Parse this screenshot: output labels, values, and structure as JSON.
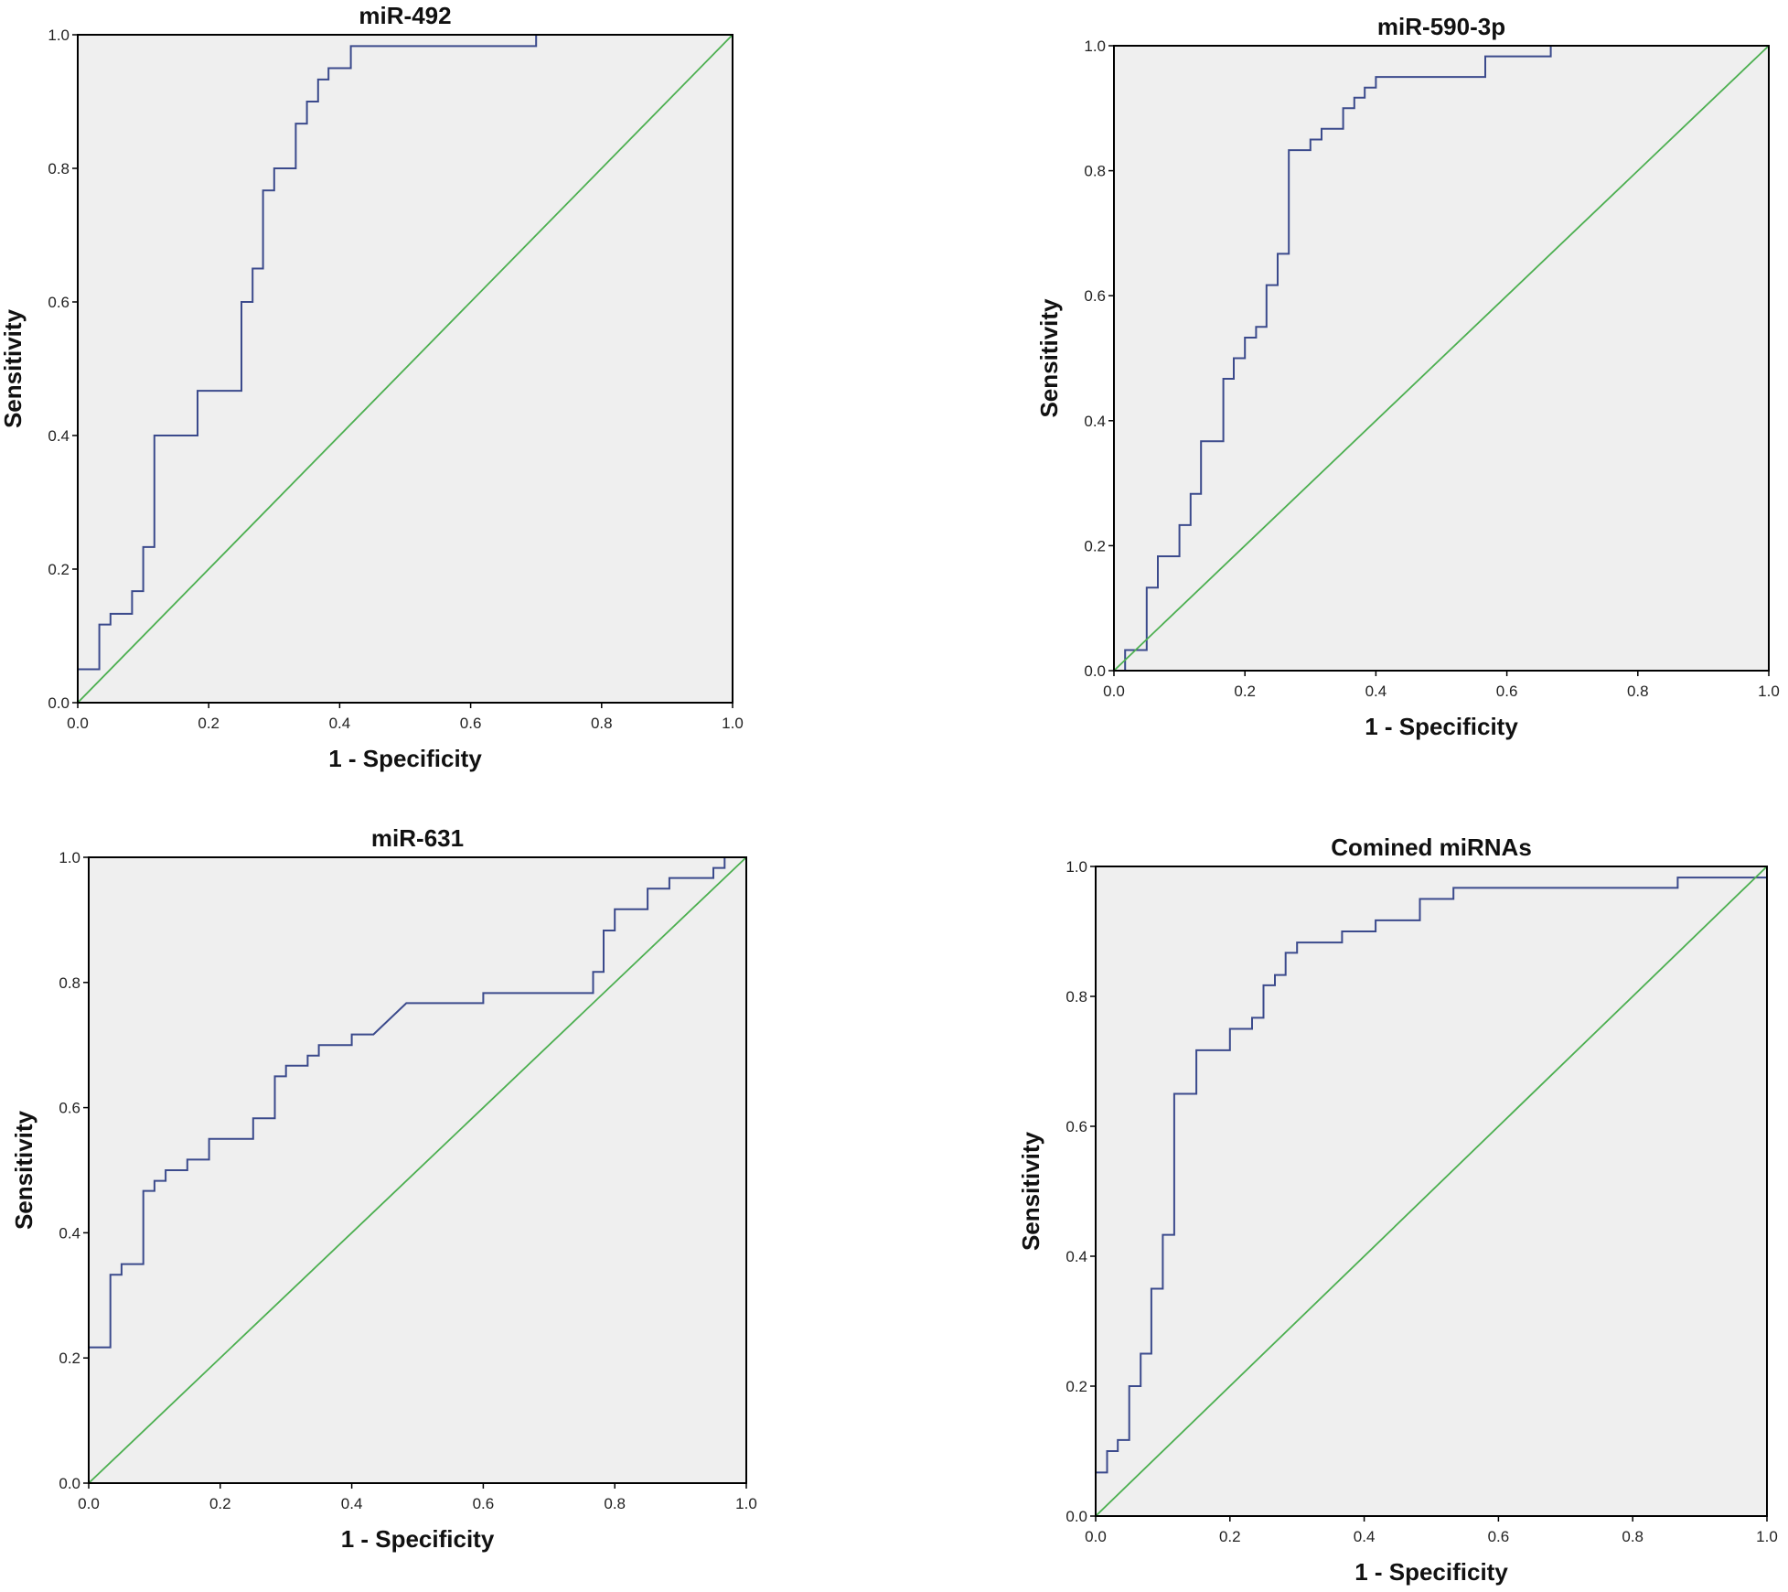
{
  "figure": {
    "colors": {
      "roc_curve": "#3b4a8c",
      "reference_line": "#4caf50",
      "plot_background": "#efefef",
      "frame": "#000000"
    }
  },
  "chart_data": [
    {
      "type": "line",
      "title": "miR-492",
      "xlabel": "1 - Specificity",
      "ylabel": "Sensitivity",
      "xlim": [
        0,
        1
      ],
      "ylim": [
        0,
        1
      ],
      "xticks": [
        "0.0",
        "0.2",
        "0.4",
        "0.6",
        "0.8",
        "1.0"
      ],
      "yticks": [
        "0.0",
        "0.2",
        "0.4",
        "0.6",
        "0.8",
        "1.0"
      ],
      "series": [
        {
          "name": "ROC curve",
          "role": "roc",
          "x": [
            0,
            0,
            0.033,
            0.033,
            0.05,
            0.05,
            0.083,
            0.083,
            0.1,
            0.1,
            0.117,
            0.117,
            0.183,
            0.183,
            0.25,
            0.25,
            0.267,
            0.267,
            0.283,
            0.283,
            0.3,
            0.3,
            0.333,
            0.333,
            0.35,
            0.35,
            0.367,
            0.367,
            0.383,
            0.383,
            0.417,
            0.417,
            0.7,
            0.7,
            1.0
          ],
          "y": [
            0,
            0.05,
            0.05,
            0.117,
            0.117,
            0.133,
            0.133,
            0.167,
            0.167,
            0.233,
            0.233,
            0.4,
            0.4,
            0.467,
            0.467,
            0.6,
            0.6,
            0.65,
            0.65,
            0.767,
            0.767,
            0.8,
            0.8,
            0.867,
            0.867,
            0.9,
            0.9,
            0.933,
            0.933,
            0.95,
            0.95,
            0.983,
            0.983,
            1.0,
            1.0
          ]
        },
        {
          "name": "Reference line",
          "role": "reference",
          "x": [
            0,
            1
          ],
          "y": [
            0,
            1
          ]
        }
      ]
    },
    {
      "type": "line",
      "title": "miR-590-3p",
      "xlabel": "1 - Specificity",
      "ylabel": "Sensitivity",
      "xlim": [
        0,
        1
      ],
      "ylim": [
        0,
        1
      ],
      "xticks": [
        "0.0",
        "0.2",
        "0.4",
        "0.6",
        "0.8",
        "1.0"
      ],
      "yticks": [
        "0.0",
        "0.2",
        "0.4",
        "0.6",
        "0.8",
        "1.0"
      ],
      "series": [
        {
          "name": "ROC curve",
          "role": "roc",
          "x": [
            0,
            0.017,
            0.017,
            0.05,
            0.05,
            0.067,
            0.067,
            0.1,
            0.1,
            0.117,
            0.117,
            0.133,
            0.133,
            0.167,
            0.167,
            0.183,
            0.183,
            0.2,
            0.2,
            0.217,
            0.217,
            0.233,
            0.233,
            0.25,
            0.25,
            0.267,
            0.267,
            0.3,
            0.3,
            0.317,
            0.317,
            0.35,
            0.35,
            0.367,
            0.367,
            0.383,
            0.383,
            0.4,
            0.4,
            0.567,
            0.567,
            0.667,
            0.667,
            1.0
          ],
          "y": [
            0,
            0,
            0.033,
            0.033,
            0.133,
            0.133,
            0.183,
            0.183,
            0.233,
            0.233,
            0.283,
            0.283,
            0.367,
            0.367,
            0.467,
            0.467,
            0.5,
            0.5,
            0.533,
            0.533,
            0.55,
            0.55,
            0.617,
            0.617,
            0.667,
            0.667,
            0.833,
            0.833,
            0.85,
            0.85,
            0.867,
            0.867,
            0.9,
            0.9,
            0.917,
            0.917,
            0.933,
            0.933,
            0.95,
            0.95,
            0.983,
            0.983,
            1.0,
            1.0
          ]
        },
        {
          "name": "Reference line",
          "role": "reference",
          "x": [
            0,
            1
          ],
          "y": [
            0,
            1
          ]
        }
      ]
    },
    {
      "type": "line",
      "title": "miR-631",
      "xlabel": "1 - Specificity",
      "ylabel": "Sensitivity",
      "xlim": [
        0,
        1
      ],
      "ylim": [
        0,
        1
      ],
      "xticks": [
        "0.0",
        "0.2",
        "0.4",
        "0.6",
        "0.8",
        "1.0"
      ],
      "yticks": [
        "0.0",
        "0.2",
        "0.4",
        "0.6",
        "0.8",
        "1.0"
      ],
      "series": [
        {
          "name": "ROC curve",
          "role": "roc",
          "x": [
            0,
            0,
            0.033,
            0.033,
            0.05,
            0.05,
            0.083,
            0.083,
            0.1,
            0.1,
            0.117,
            0.117,
            0.15,
            0.15,
            0.183,
            0.183,
            0.25,
            0.25,
            0.283,
            0.283,
            0.3,
            0.3,
            0.333,
            0.333,
            0.35,
            0.35,
            0.4,
            0.4,
            0.433,
            0.483,
            0.6,
            0.6,
            0.767,
            0.767,
            0.783,
            0.783,
            0.8,
            0.8,
            0.85,
            0.85,
            0.883,
            0.883,
            0.95,
            0.95,
            0.967,
            0.967,
            1.0
          ],
          "y": [
            0,
            0.217,
            0.217,
            0.333,
            0.333,
            0.35,
            0.35,
            0.467,
            0.467,
            0.483,
            0.483,
            0.5,
            0.5,
            0.517,
            0.517,
            0.55,
            0.55,
            0.583,
            0.583,
            0.65,
            0.65,
            0.667,
            0.667,
            0.683,
            0.683,
            0.7,
            0.7,
            0.717,
            0.717,
            0.767,
            0.767,
            0.783,
            0.783,
            0.817,
            0.817,
            0.883,
            0.883,
            0.917,
            0.917,
            0.95,
            0.95,
            0.967,
            0.967,
            0.983,
            0.983,
            1.0,
            1.0
          ]
        },
        {
          "name": "Reference line",
          "role": "reference",
          "x": [
            0,
            1
          ],
          "y": [
            0,
            1
          ]
        }
      ]
    },
    {
      "type": "line",
      "title": "Comined miRNAs",
      "xlabel": "1 - Specificity",
      "ylabel": "Sensitivity",
      "xlim": [
        0,
        1
      ],
      "ylim": [
        0,
        1
      ],
      "xticks": [
        "0.0",
        "0.2",
        "0.4",
        "0.6",
        "0.8",
        "1.0"
      ],
      "yticks": [
        "0.0",
        "0.2",
        "0.4",
        "0.6",
        "0.8",
        "1.0"
      ],
      "series": [
        {
          "name": "ROC curve",
          "role": "roc",
          "x": [
            0,
            0,
            0.017,
            0.017,
            0.033,
            0.033,
            0.05,
            0.05,
            0.067,
            0.067,
            0.083,
            0.083,
            0.1,
            0.1,
            0.117,
            0.117,
            0.15,
            0.15,
            0.2,
            0.2,
            0.233,
            0.233,
            0.25,
            0.25,
            0.267,
            0.267,
            0.283,
            0.283,
            0.3,
            0.3,
            0.367,
            0.367,
            0.417,
            0.417,
            0.483,
            0.483,
            0.533,
            0.533,
            0.867,
            0.867,
            1.0
          ],
          "y": [
            0,
            0.067,
            0.067,
            0.1,
            0.1,
            0.117,
            0.117,
            0.2,
            0.2,
            0.25,
            0.25,
            0.35,
            0.35,
            0.433,
            0.433,
            0.65,
            0.65,
            0.717,
            0.717,
            0.75,
            0.75,
            0.767,
            0.767,
            0.817,
            0.817,
            0.833,
            0.833,
            0.867,
            0.867,
            0.883,
            0.883,
            0.9,
            0.9,
            0.917,
            0.917,
            0.95,
            0.95,
            0.967,
            0.967,
            0.983,
            0.983
          ]
        },
        {
          "name": "Reference line",
          "role": "reference",
          "x": [
            0,
            1
          ],
          "y": [
            0,
            1
          ]
        }
      ]
    }
  ]
}
